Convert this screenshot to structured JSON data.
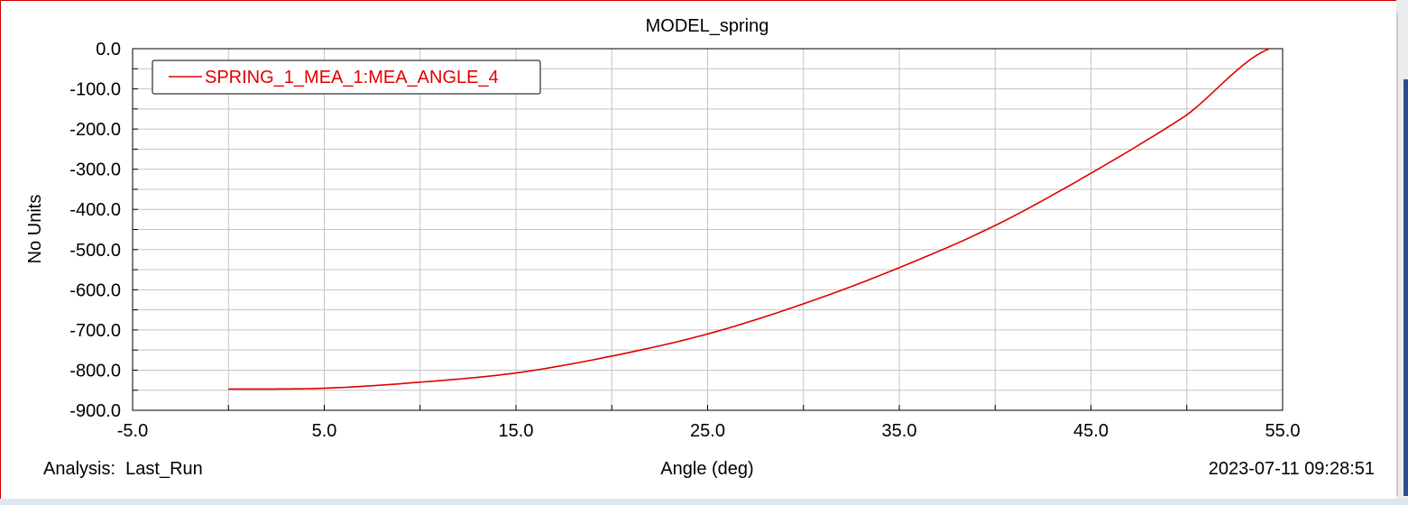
{
  "window": {
    "border_color": "#d00000",
    "background": "#ffffff"
  },
  "footer": {
    "analysis_label": "Analysis:  Last_Run",
    "timestamp": "2023-07-11 09:28:51"
  },
  "chart_data": {
    "type": "line",
    "title": "MODEL_spring",
    "xlabel": "Angle (deg)",
    "ylabel": "No Units",
    "xlim": [
      -5.0,
      55.0
    ],
    "ylim": [
      -900.0,
      0.0
    ],
    "x_ticks": [
      "-5.0",
      "5.0",
      "15.0",
      "25.0",
      "35.0",
      "45.0",
      "55.0"
    ],
    "y_ticks": [
      "0.0",
      "-100.0",
      "-200.0",
      "-300.0",
      "-400.0",
      "-500.0",
      "-600.0",
      "-700.0",
      "-800.0",
      "-900.0"
    ],
    "grid": true,
    "legend_position": "top-left",
    "series": [
      {
        "name": "SPRING_1_MEA_1:MEA_ANGLE_4",
        "color": "#e00000",
        "x": [
          0,
          5,
          10,
          15,
          20,
          25,
          30,
          35,
          40,
          45,
          50,
          54.3
        ],
        "y": [
          -847,
          -845,
          -830,
          -807,
          -765,
          -710,
          -635,
          -545,
          -440,
          -310,
          -165,
          0
        ]
      }
    ]
  }
}
